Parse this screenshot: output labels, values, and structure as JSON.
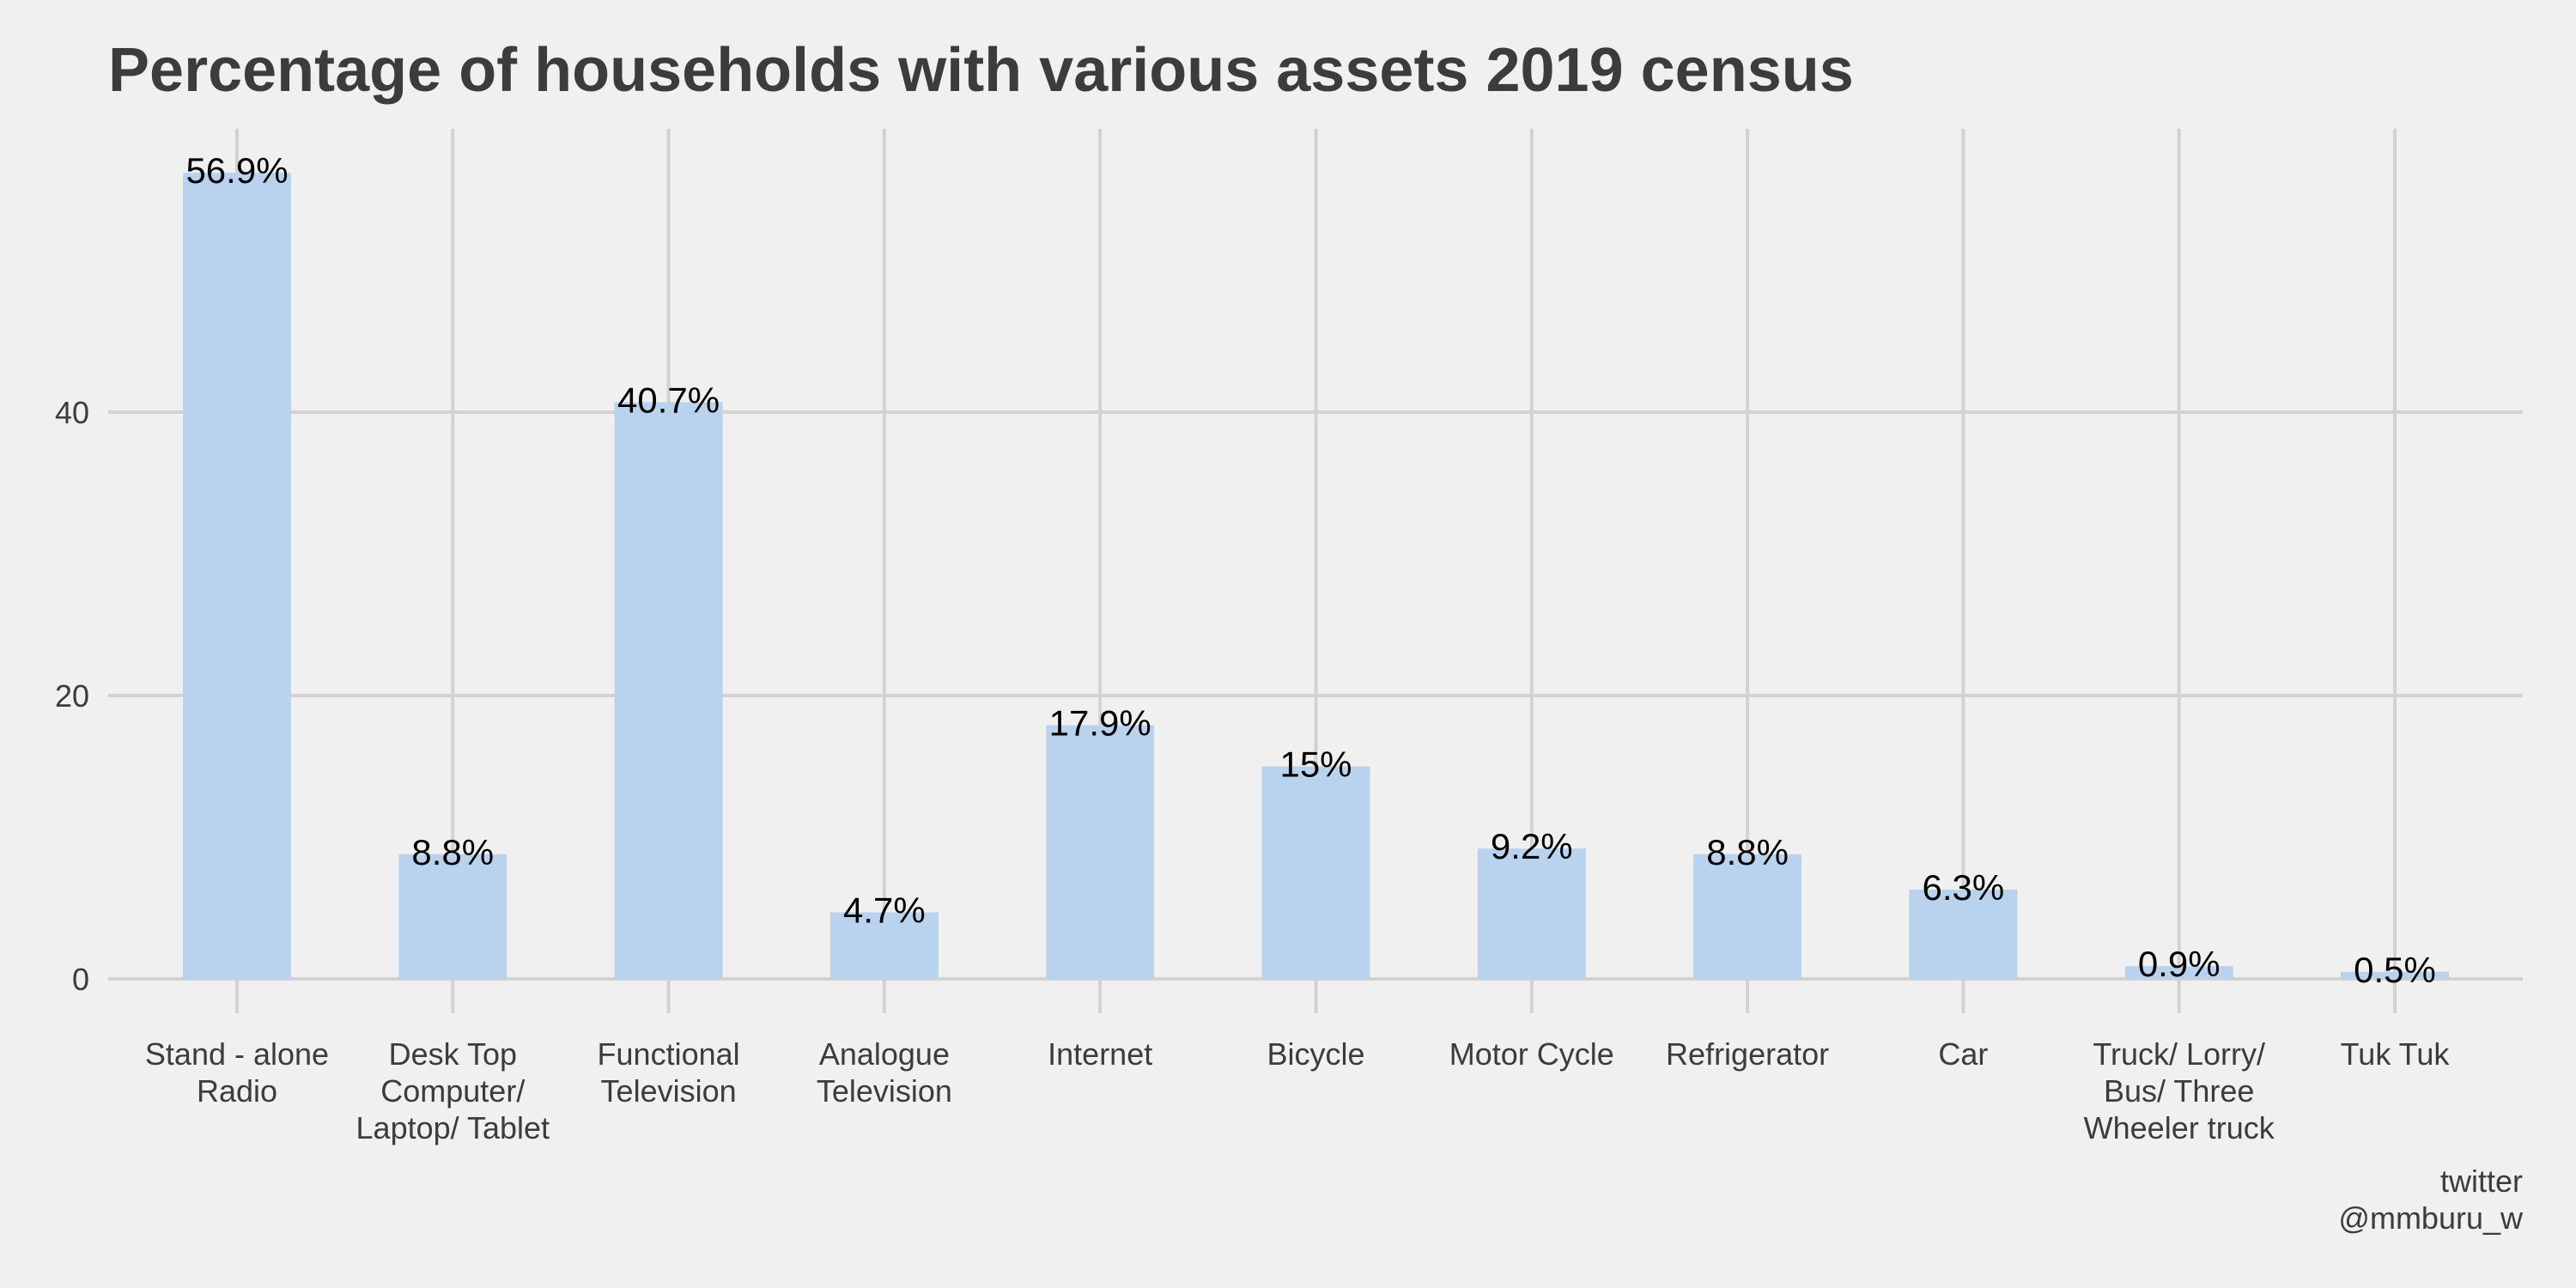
{
  "chart_data": {
    "type": "bar",
    "title": "Percentage of households with various assets 2019 census",
    "xlabel": "",
    "ylabel": "",
    "categories": [
      [
        "Stand - alone",
        "Radio"
      ],
      [
        "Desk Top",
        "Computer/",
        "Laptop/ Tablet"
      ],
      [
        "Functional",
        "Television"
      ],
      [
        "Analogue",
        "Television"
      ],
      [
        "Internet"
      ],
      [
        "Bicycle"
      ],
      [
        "Motor Cycle"
      ],
      [
        "Refrigerator"
      ],
      [
        "Car"
      ],
      [
        "Truck/ Lorry/",
        "Bus/ Three",
        "Wheeler truck"
      ],
      [
        "Tuk Tuk"
      ]
    ],
    "values": [
      56.9,
      8.8,
      40.7,
      4.7,
      17.9,
      15,
      9.2,
      8.8,
      6.3,
      0.9,
      0.5
    ],
    "data_labels": [
      "56.9%",
      "8.8%",
      "40.7%",
      "4.7%",
      "17.9%",
      "15%",
      "9.2%",
      "8.8%",
      "6.3%",
      "0.9%",
      "0.5%"
    ],
    "yticks": [
      0,
      20,
      40
    ],
    "ylim": [
      -2.85,
      59.75
    ],
    "grid": true,
    "bar_color": "#b9d3ee",
    "grid_color": "#d2d2d2",
    "background_color": "#f0f0f0",
    "caption": [
      "twitter",
      "@mmburu_w"
    ]
  }
}
